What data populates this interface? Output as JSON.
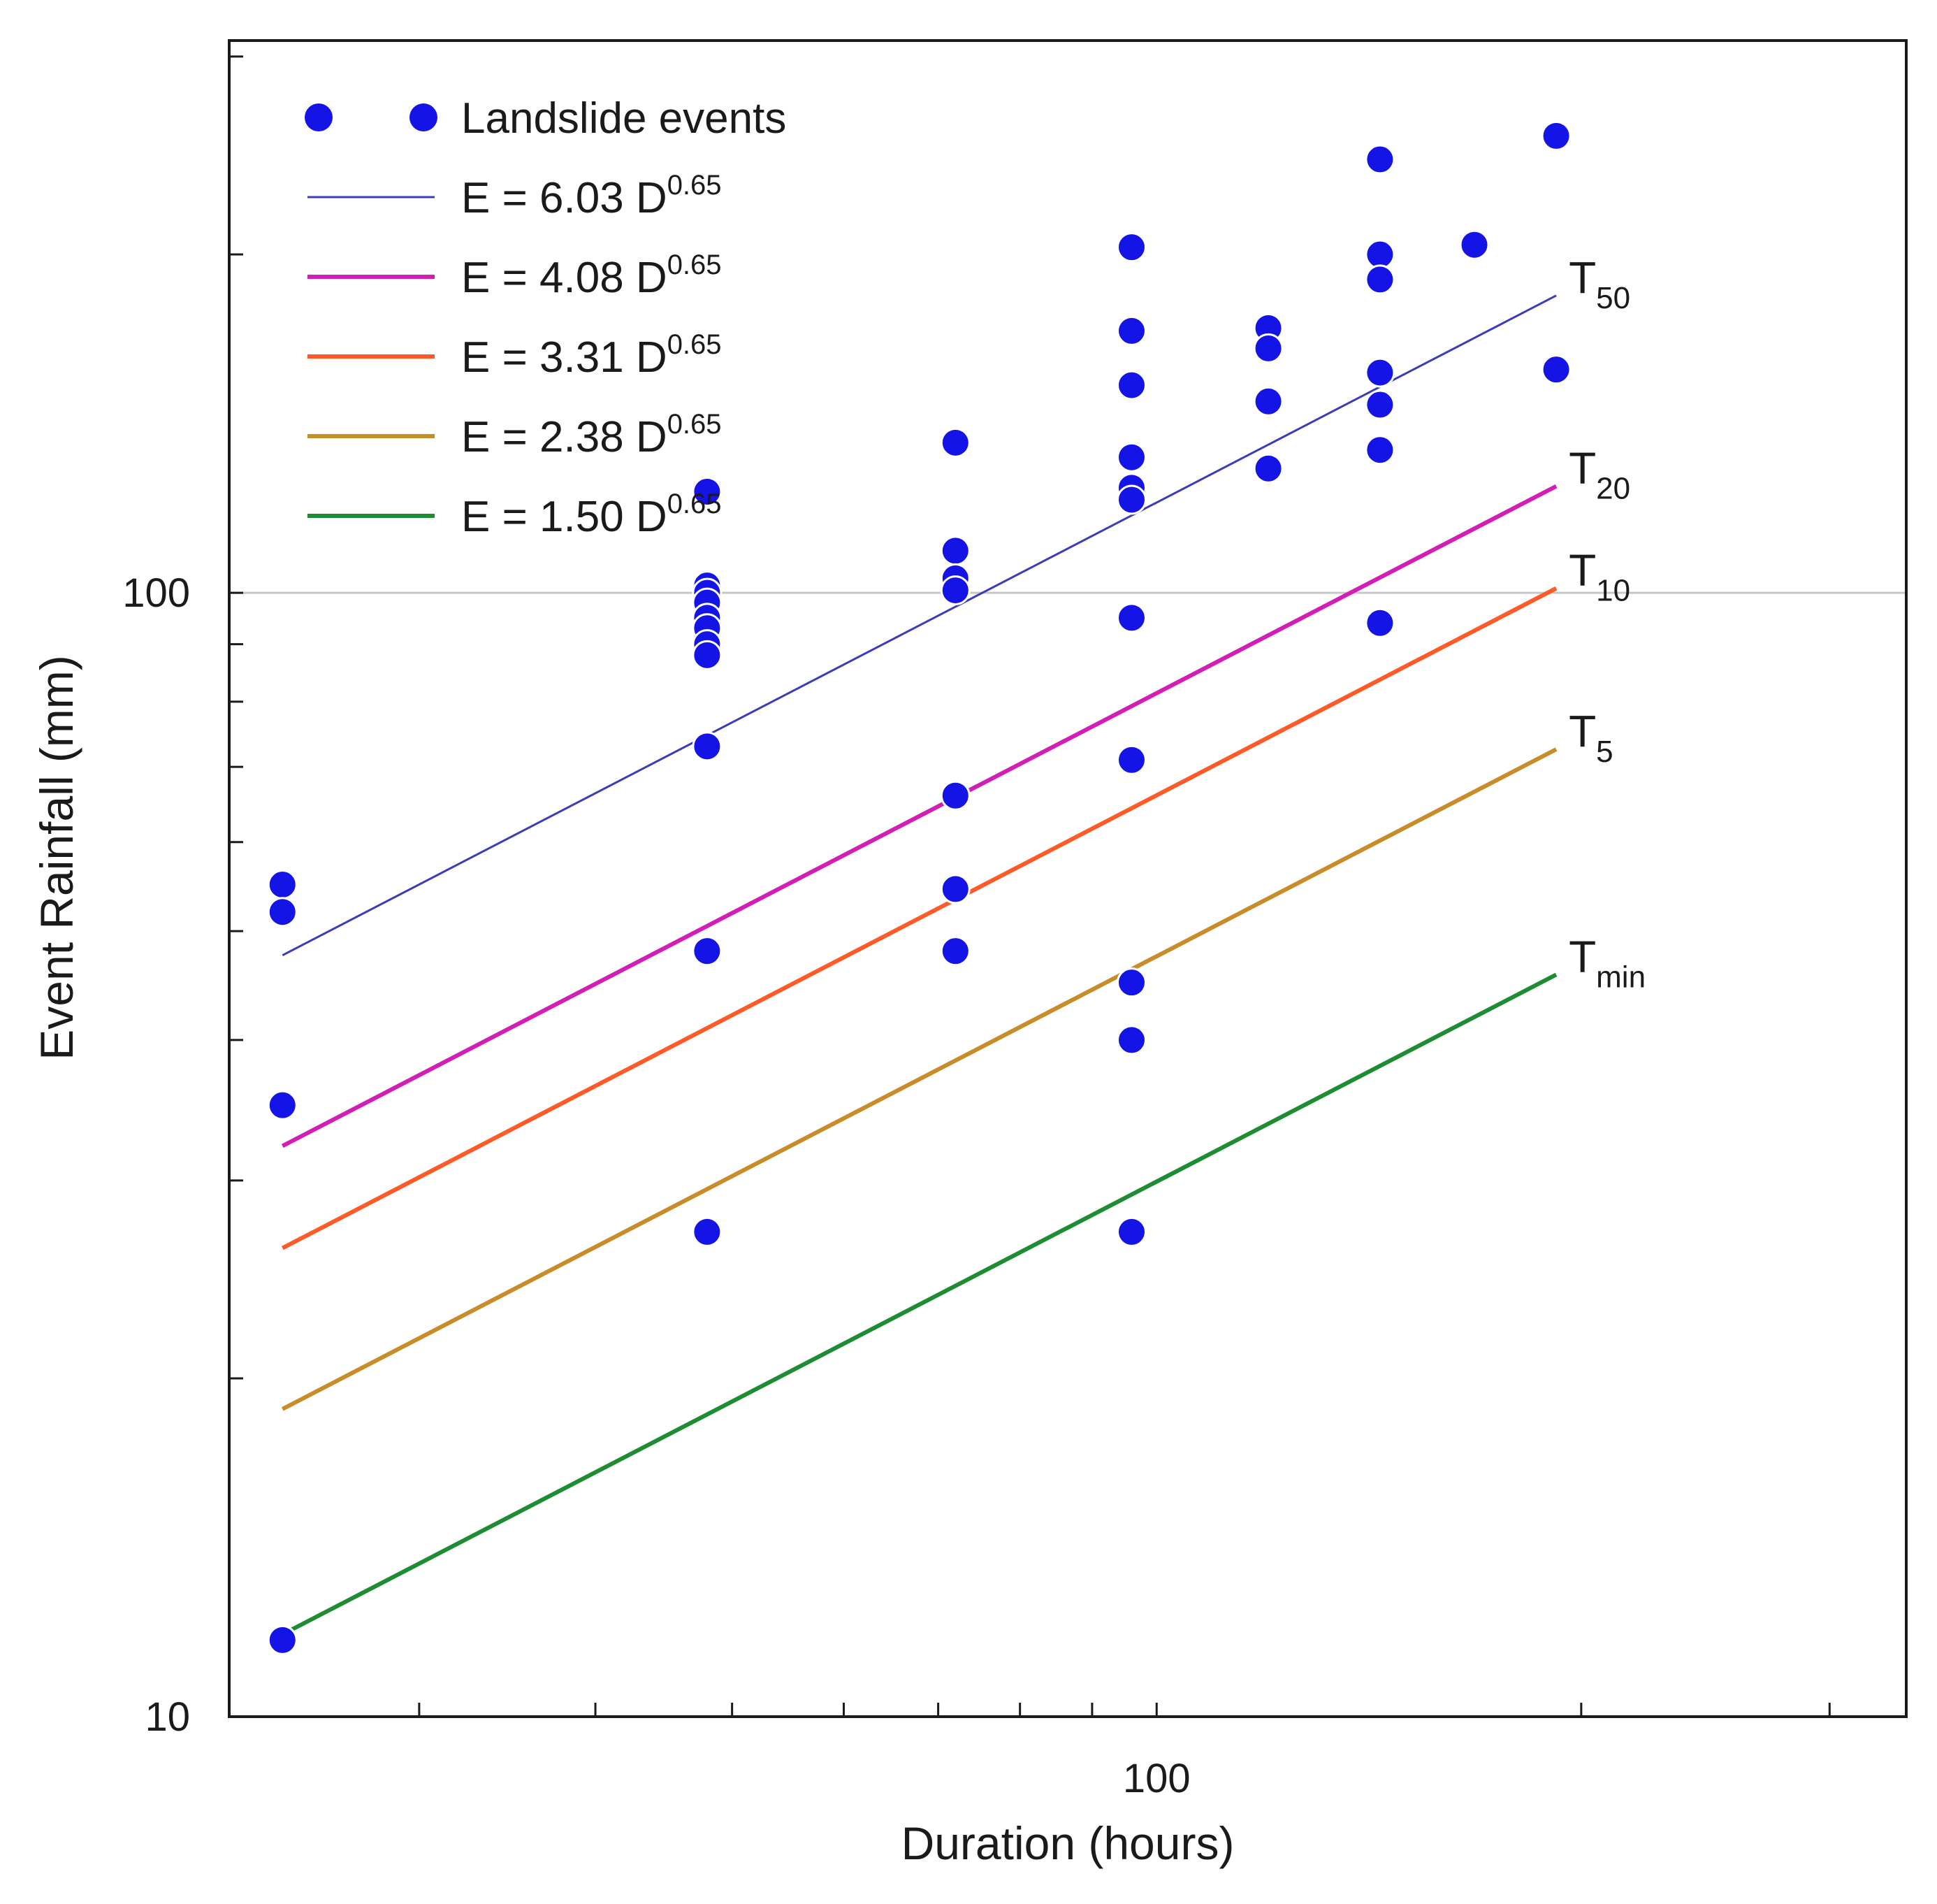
{
  "chart_data": {
    "type": "scatter",
    "title": "",
    "xlabel": "Duration (hours)",
    "ylabel": "Event Rainfall (mm)",
    "xscale": "log",
    "yscale": "log",
    "xlim": [
      22,
      340
    ],
    "ylim": [
      10,
      310
    ],
    "x_ticks": [
      30,
      40,
      50,
      60,
      70,
      80,
      90,
      100,
      200,
      300
    ],
    "y_ticks": [
      20,
      30,
      40,
      50,
      60,
      70,
      80,
      90,
      100,
      200,
      300
    ],
    "x_tick_labels": [
      {
        "value": 100,
        "label": "100"
      }
    ],
    "y_tick_labels": [
      {
        "value": 10,
        "label": "10"
      },
      {
        "value": 100,
        "label": "100"
      }
    ],
    "reference_line_y": 100,
    "colors": {
      "points": "#1414e6",
      "axis": "#1a1a1a",
      "gridline": "#c8c8c8"
    },
    "legend": {
      "position": "top-left",
      "entries": [
        {
          "label": "Landslide events",
          "kind": "marker",
          "color": "#1414e6"
        },
        {
          "label": "E = 6.03 D",
          "sup": "0.65",
          "kind": "line",
          "series": 0
        },
        {
          "label": "E = 4.08 D",
          "sup": "0.65",
          "kind": "line",
          "series": 1
        },
        {
          "label": "E = 3.31 D",
          "sup": "0.65",
          "kind": "line",
          "series": 2
        },
        {
          "label": "E = 2.38 D",
          "sup": "0.65",
          "kind": "line",
          "series": 3
        },
        {
          "label": "E = 1.50 D",
          "sup": "0.65",
          "kind": "line",
          "series": 4
        }
      ]
    },
    "series": [
      {
        "name": "E = 6.03 D^0.65",
        "coefficient": 6.03,
        "exponent": 0.65,
        "color": "#3c3cb4",
        "width": 3,
        "x_range": [
          24,
          192
        ],
        "label": "T",
        "label_sub": "50"
      },
      {
        "name": "E = 4.08 D^0.65",
        "coefficient": 4.08,
        "exponent": 0.65,
        "color": "#d21eb4",
        "width": 6,
        "x_range": [
          24,
          192
        ],
        "label": "T",
        "label_sub": "20"
      },
      {
        "name": "E = 3.31 D^0.65",
        "coefficient": 3.31,
        "exponent": 0.65,
        "color": "#ff5a28",
        "width": 6,
        "x_range": [
          24,
          192
        ],
        "label": "T",
        "label_sub": "10"
      },
      {
        "name": "E = 2.38 D^0.65",
        "coefficient": 2.38,
        "exponent": 0.65,
        "color": "#c88c28",
        "width": 6,
        "x_range": [
          24,
          192
        ],
        "label": "T",
        "label_sub": "5"
      },
      {
        "name": "E = 1.50 D^0.65",
        "coefficient": 1.5,
        "exponent": 0.65,
        "color": "#1e8c32",
        "width": 6,
        "x_range": [
          24,
          192
        ],
        "label": "T",
        "label_sub": "min"
      }
    ],
    "points": [
      {
        "x": 24,
        "y": 55
      },
      {
        "x": 24,
        "y": 52
      },
      {
        "x": 24,
        "y": 35
      },
      {
        "x": 24,
        "y": 11.7
      },
      {
        "x": 48,
        "y": 123
      },
      {
        "x": 48,
        "y": 101.5
      },
      {
        "x": 48,
        "y": 100
      },
      {
        "x": 48,
        "y": 98
      },
      {
        "x": 48,
        "y": 95
      },
      {
        "x": 48,
        "y": 93
      },
      {
        "x": 48,
        "y": 90
      },
      {
        "x": 48,
        "y": 88
      },
      {
        "x": 48,
        "y": 73
      },
      {
        "x": 48,
        "y": 48
      },
      {
        "x": 48,
        "y": 27
      },
      {
        "x": 72,
        "y": 136
      },
      {
        "x": 72,
        "y": 109
      },
      {
        "x": 72,
        "y": 103
      },
      {
        "x": 72,
        "y": 100.5
      },
      {
        "x": 72,
        "y": 66
      },
      {
        "x": 72,
        "y": 54.5
      },
      {
        "x": 72,
        "y": 48
      },
      {
        "x": 96,
        "y": 203
      },
      {
        "x": 96,
        "y": 171
      },
      {
        "x": 96,
        "y": 153
      },
      {
        "x": 96,
        "y": 132
      },
      {
        "x": 96,
        "y": 124
      },
      {
        "x": 96,
        "y": 121
      },
      {
        "x": 96,
        "y": 95
      },
      {
        "x": 96,
        "y": 71
      },
      {
        "x": 96,
        "y": 45
      },
      {
        "x": 96,
        "y": 40
      },
      {
        "x": 96,
        "y": 27
      },
      {
        "x": 120,
        "y": 172
      },
      {
        "x": 120,
        "y": 165
      },
      {
        "x": 120,
        "y": 148
      },
      {
        "x": 120,
        "y": 129
      },
      {
        "x": 144,
        "y": 243
      },
      {
        "x": 144,
        "y": 200
      },
      {
        "x": 144,
        "y": 190
      },
      {
        "x": 144,
        "y": 157
      },
      {
        "x": 144,
        "y": 147
      },
      {
        "x": 144,
        "y": 134
      },
      {
        "x": 144,
        "y": 94
      },
      {
        "x": 168,
        "y": 204
      },
      {
        "x": 192,
        "y": 255
      },
      {
        "x": 192,
        "y": 158
      }
    ]
  }
}
